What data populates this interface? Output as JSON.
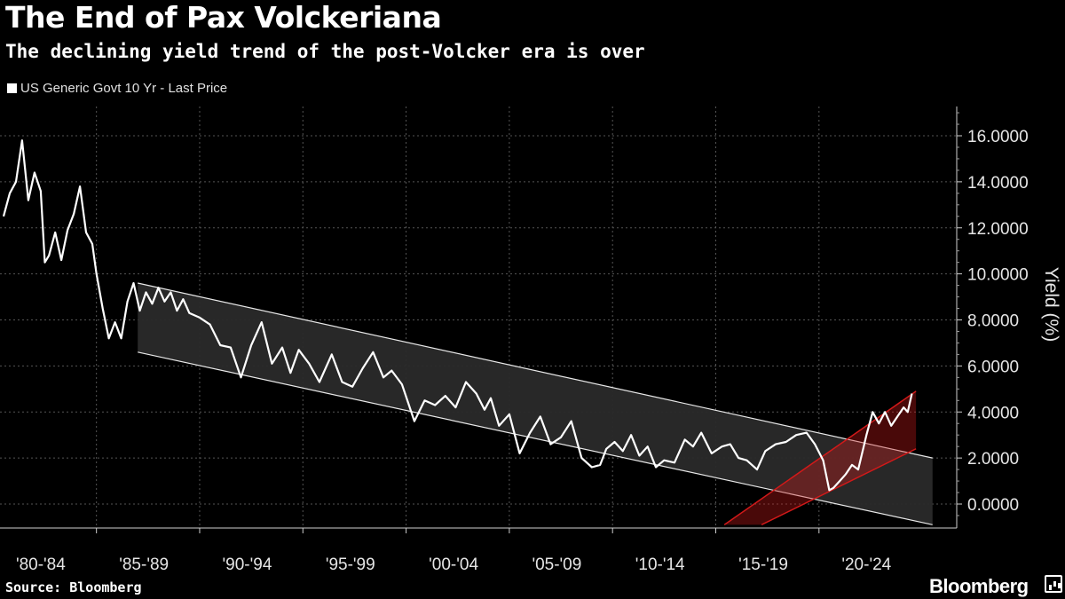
{
  "header": {
    "title": "The End of Pax Volckeriana",
    "subtitle": "The declining yield trend of the post-Volcker era is over"
  },
  "footer": {
    "source": "Source: Bloomberg",
    "brand": "Bloomberg"
  },
  "colors": {
    "background": "#000000",
    "line": "#ffffff",
    "grid": "#555555",
    "channel_fill": "#2a2a2a",
    "uptrend": "#d21919"
  },
  "chart_data": {
    "type": "line",
    "title": "The End of Pax Volckeriana",
    "subtitle": "The declining yield trend of the post-Volcker era is over",
    "ylabel": "Yield (%)",
    "xlabel": "",
    "ylim": [
      -1.0,
      17.5
    ],
    "xlim": [
      1980.0,
      2026.0
    ],
    "y_ticks": [
      "16.0000",
      "14.0000",
      "12.0000",
      "10.0000",
      "8.0000",
      "6.0000",
      "4.0000",
      "2.0000",
      "0.0000"
    ],
    "y_tick_values": [
      16,
      14,
      12,
      10,
      8,
      6,
      4,
      2,
      0
    ],
    "x_ticks": [
      "'80-'84",
      "'85-'89",
      "'90-'94",
      "'95-'99",
      "'00-'04",
      "'05-'09",
      "'10-'14",
      "'15-'19",
      "'20-'24"
    ],
    "x_tick_centers": [
      1981.8,
      1986.8,
      1991.8,
      1996.8,
      2001.8,
      2006.8,
      2011.8,
      2016.8,
      2021.8
    ],
    "x_gridlines": [
      1984.5,
      1989.5,
      1994.5,
      1999.5,
      2004.5,
      2009.5,
      2014.5,
      2019.5
    ],
    "legend": "US Generic Govt 10 Yr - Last Price",
    "legend_position": "top-left",
    "grid": true,
    "series": [
      {
        "name": "US Generic Govt 10 Yr - Last Price",
        "x": [
          1980.0,
          1980.3,
          1980.6,
          1980.9,
          1981.2,
          1981.5,
          1981.8,
          1982.0,
          1982.2,
          1982.5,
          1982.8,
          1983.1,
          1983.4,
          1983.7,
          1984.0,
          1984.3,
          1984.5,
          1984.8,
          1985.1,
          1985.4,
          1985.7,
          1986.0,
          1986.3,
          1986.6,
          1986.9,
          1987.2,
          1987.5,
          1987.8,
          1988.1,
          1988.4,
          1988.7,
          1989.0,
          1989.5,
          1990.0,
          1990.5,
          1991.0,
          1991.5,
          1992.0,
          1992.5,
          1993.0,
          1993.5,
          1993.9,
          1994.3,
          1994.8,
          1995.3,
          1995.9,
          1996.4,
          1996.9,
          1997.4,
          1997.9,
          1998.4,
          1998.8,
          1999.3,
          1999.9,
          2000.4,
          2000.9,
          2001.4,
          2001.9,
          2002.4,
          2002.9,
          2003.3,
          2003.6,
          2004.0,
          2004.5,
          2005.0,
          2005.5,
          2006.0,
          2006.5,
          2007.0,
          2007.5,
          2008.0,
          2008.5,
          2008.9,
          2009.2,
          2009.6,
          2010.0,
          2010.4,
          2010.8,
          2011.2,
          2011.6,
          2012.0,
          2012.5,
          2013.0,
          2013.4,
          2013.8,
          2014.3,
          2014.8,
          2015.2,
          2015.6,
          2016.0,
          2016.5,
          2016.9,
          2017.4,
          2017.9,
          2018.4,
          2018.9,
          2019.3,
          2019.7,
          2020.0,
          2020.2,
          2020.5,
          2020.8,
          2021.1,
          2021.4,
          2021.8,
          2022.1,
          2022.4,
          2022.7,
          2023.0,
          2023.3,
          2023.6,
          2023.8,
          2024.0
        ],
        "values": [
          12.5,
          13.5,
          14.0,
          15.8,
          13.2,
          14.4,
          13.6,
          10.5,
          10.8,
          11.8,
          10.6,
          11.9,
          12.6,
          13.8,
          11.8,
          11.3,
          10.0,
          8.5,
          7.2,
          7.9,
          7.2,
          8.8,
          9.6,
          8.4,
          9.2,
          8.7,
          9.4,
          8.8,
          9.2,
          8.4,
          8.9,
          8.3,
          8.1,
          7.8,
          6.9,
          6.8,
          5.5,
          6.9,
          7.9,
          6.1,
          6.8,
          5.7,
          6.7,
          6.1,
          5.3,
          6.5,
          5.3,
          5.1,
          5.9,
          6.6,
          5.5,
          5.8,
          5.2,
          3.6,
          4.5,
          4.3,
          4.7,
          4.2,
          5.3,
          4.8,
          4.1,
          4.6,
          3.4,
          3.9,
          2.2,
          3.1,
          3.8,
          2.6,
          2.9,
          3.6,
          2.0,
          1.6,
          1.7,
          2.4,
          2.7,
          2.3,
          3.0,
          2.1,
          2.5,
          1.6,
          1.9,
          1.8,
          2.8,
          2.5,
          3.1,
          2.2,
          2.5,
          2.6,
          2.0,
          1.9,
          1.5,
          2.3,
          2.6,
          2.7,
          3.0,
          3.1,
          2.6,
          1.9,
          0.6,
          0.7,
          1.0,
          1.3,
          1.7,
          1.5,
          3.0,
          4.0,
          3.5,
          4.0,
          3.4,
          3.8,
          4.2,
          4.0,
          4.8
        ]
      }
    ],
    "annotations": [
      {
        "name": "Post-Volcker declining channel",
        "x": [
          1986.5,
          2025.0
        ],
        "upper": [
          9.6,
          2.0
        ],
        "lower": [
          6.6,
          -0.9
        ]
      },
      {
        "name": "Rising channel",
        "x": [
          2015.0,
          2024.2
        ],
        "upper": [
          -0.9,
          4.9
        ],
        "lower": [
          -0.9,
          2.4
        ]
      }
    ]
  }
}
